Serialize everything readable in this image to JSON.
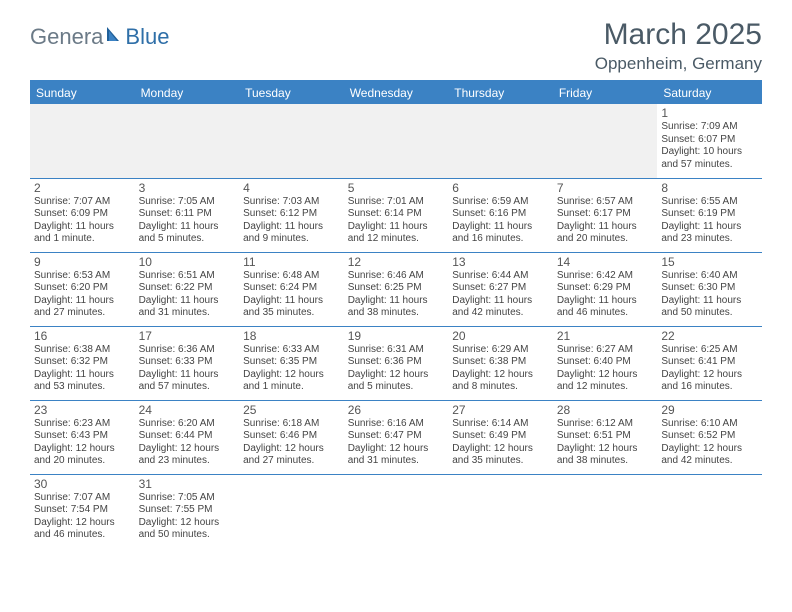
{
  "logo": {
    "part1": "Genera",
    "part2": "Blue",
    "part1_color": "#6b7a87",
    "part2_color": "#2f6fa8"
  },
  "title": "March 2025",
  "location": "Oppenheim, Germany",
  "header_bg": "#3b82c4",
  "border_color": "#3b82c4",
  "dayHeaders": [
    "Sunday",
    "Monday",
    "Tuesday",
    "Wednesday",
    "Thursday",
    "Friday",
    "Saturday"
  ],
  "weeks": [
    [
      null,
      null,
      null,
      null,
      null,
      null,
      {
        "n": "1",
        "sr": "Sunrise: 7:09 AM",
        "ss": "Sunset: 6:07 PM",
        "dl": "Daylight: 10 hours and 57 minutes."
      }
    ],
    [
      {
        "n": "2",
        "sr": "Sunrise: 7:07 AM",
        "ss": "Sunset: 6:09 PM",
        "dl": "Daylight: 11 hours and 1 minute."
      },
      {
        "n": "3",
        "sr": "Sunrise: 7:05 AM",
        "ss": "Sunset: 6:11 PM",
        "dl": "Daylight: 11 hours and 5 minutes."
      },
      {
        "n": "4",
        "sr": "Sunrise: 7:03 AM",
        "ss": "Sunset: 6:12 PM",
        "dl": "Daylight: 11 hours and 9 minutes."
      },
      {
        "n": "5",
        "sr": "Sunrise: 7:01 AM",
        "ss": "Sunset: 6:14 PM",
        "dl": "Daylight: 11 hours and 12 minutes."
      },
      {
        "n": "6",
        "sr": "Sunrise: 6:59 AM",
        "ss": "Sunset: 6:16 PM",
        "dl": "Daylight: 11 hours and 16 minutes."
      },
      {
        "n": "7",
        "sr": "Sunrise: 6:57 AM",
        "ss": "Sunset: 6:17 PM",
        "dl": "Daylight: 11 hours and 20 minutes."
      },
      {
        "n": "8",
        "sr": "Sunrise: 6:55 AM",
        "ss": "Sunset: 6:19 PM",
        "dl": "Daylight: 11 hours and 23 minutes."
      }
    ],
    [
      {
        "n": "9",
        "sr": "Sunrise: 6:53 AM",
        "ss": "Sunset: 6:20 PM",
        "dl": "Daylight: 11 hours and 27 minutes."
      },
      {
        "n": "10",
        "sr": "Sunrise: 6:51 AM",
        "ss": "Sunset: 6:22 PM",
        "dl": "Daylight: 11 hours and 31 minutes."
      },
      {
        "n": "11",
        "sr": "Sunrise: 6:48 AM",
        "ss": "Sunset: 6:24 PM",
        "dl": "Daylight: 11 hours and 35 minutes."
      },
      {
        "n": "12",
        "sr": "Sunrise: 6:46 AM",
        "ss": "Sunset: 6:25 PM",
        "dl": "Daylight: 11 hours and 38 minutes."
      },
      {
        "n": "13",
        "sr": "Sunrise: 6:44 AM",
        "ss": "Sunset: 6:27 PM",
        "dl": "Daylight: 11 hours and 42 minutes."
      },
      {
        "n": "14",
        "sr": "Sunrise: 6:42 AM",
        "ss": "Sunset: 6:29 PM",
        "dl": "Daylight: 11 hours and 46 minutes."
      },
      {
        "n": "15",
        "sr": "Sunrise: 6:40 AM",
        "ss": "Sunset: 6:30 PM",
        "dl": "Daylight: 11 hours and 50 minutes."
      }
    ],
    [
      {
        "n": "16",
        "sr": "Sunrise: 6:38 AM",
        "ss": "Sunset: 6:32 PM",
        "dl": "Daylight: 11 hours and 53 minutes."
      },
      {
        "n": "17",
        "sr": "Sunrise: 6:36 AM",
        "ss": "Sunset: 6:33 PM",
        "dl": "Daylight: 11 hours and 57 minutes."
      },
      {
        "n": "18",
        "sr": "Sunrise: 6:33 AM",
        "ss": "Sunset: 6:35 PM",
        "dl": "Daylight: 12 hours and 1 minute."
      },
      {
        "n": "19",
        "sr": "Sunrise: 6:31 AM",
        "ss": "Sunset: 6:36 PM",
        "dl": "Daylight: 12 hours and 5 minutes."
      },
      {
        "n": "20",
        "sr": "Sunrise: 6:29 AM",
        "ss": "Sunset: 6:38 PM",
        "dl": "Daylight: 12 hours and 8 minutes."
      },
      {
        "n": "21",
        "sr": "Sunrise: 6:27 AM",
        "ss": "Sunset: 6:40 PM",
        "dl": "Daylight: 12 hours and 12 minutes."
      },
      {
        "n": "22",
        "sr": "Sunrise: 6:25 AM",
        "ss": "Sunset: 6:41 PM",
        "dl": "Daylight: 12 hours and 16 minutes."
      }
    ],
    [
      {
        "n": "23",
        "sr": "Sunrise: 6:23 AM",
        "ss": "Sunset: 6:43 PM",
        "dl": "Daylight: 12 hours and 20 minutes."
      },
      {
        "n": "24",
        "sr": "Sunrise: 6:20 AM",
        "ss": "Sunset: 6:44 PM",
        "dl": "Daylight: 12 hours and 23 minutes."
      },
      {
        "n": "25",
        "sr": "Sunrise: 6:18 AM",
        "ss": "Sunset: 6:46 PM",
        "dl": "Daylight: 12 hours and 27 minutes."
      },
      {
        "n": "26",
        "sr": "Sunrise: 6:16 AM",
        "ss": "Sunset: 6:47 PM",
        "dl": "Daylight: 12 hours and 31 minutes."
      },
      {
        "n": "27",
        "sr": "Sunrise: 6:14 AM",
        "ss": "Sunset: 6:49 PM",
        "dl": "Daylight: 12 hours and 35 minutes."
      },
      {
        "n": "28",
        "sr": "Sunrise: 6:12 AM",
        "ss": "Sunset: 6:51 PM",
        "dl": "Daylight: 12 hours and 38 minutes."
      },
      {
        "n": "29",
        "sr": "Sunrise: 6:10 AM",
        "ss": "Sunset: 6:52 PM",
        "dl": "Daylight: 12 hours and 42 minutes."
      }
    ],
    [
      {
        "n": "30",
        "sr": "Sunrise: 7:07 AM",
        "ss": "Sunset: 7:54 PM",
        "dl": "Daylight: 12 hours and 46 minutes."
      },
      {
        "n": "31",
        "sr": "Sunrise: 7:05 AM",
        "ss": "Sunset: 7:55 PM",
        "dl": "Daylight: 12 hours and 50 minutes."
      },
      null,
      null,
      null,
      null,
      null
    ]
  ]
}
